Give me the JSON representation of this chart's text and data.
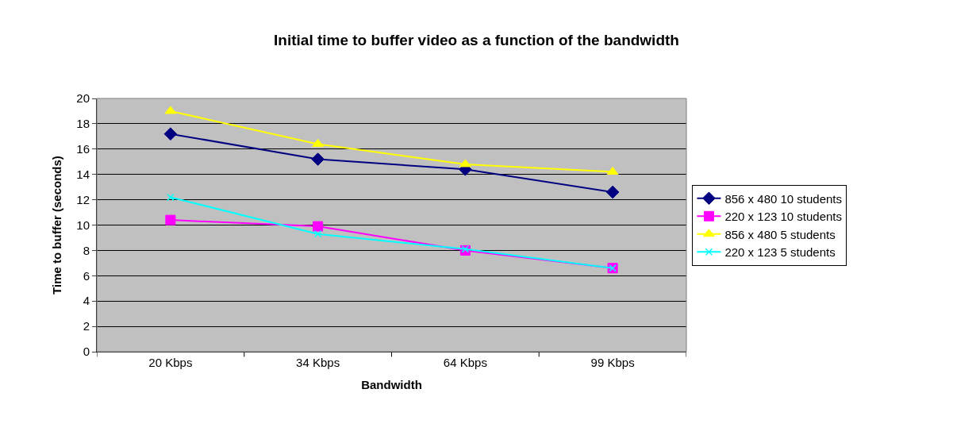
{
  "chart_data": {
    "type": "line",
    "title": "Initial time to buffer video as a function of the bandwidth",
    "xlabel": "Bandwidth",
    "ylabel": "Time to buffer (seconds)",
    "categories": [
      "20 Kbps",
      "34 Kbps",
      "64 Kbps",
      "99 Kbps"
    ],
    "series": [
      {
        "name": "856 x 480 10 students",
        "color": "#000080",
        "marker": "diamond",
        "values": [
          17.2,
          15.2,
          14.4,
          12.6
        ]
      },
      {
        "name": "220 x 123 10 students",
        "color": "#ff00ff",
        "marker": "square",
        "values": [
          10.4,
          9.9,
          8.0,
          6.6
        ]
      },
      {
        "name": "856 x 480 5 students",
        "color": "#ffff00",
        "marker": "triangle",
        "values": [
          19.0,
          16.4,
          14.8,
          14.2
        ]
      },
      {
        "name": "220 x 123 5 students",
        "color": "#00ffff",
        "marker": "cross",
        "values": [
          12.2,
          9.3,
          8.1,
          6.6
        ]
      }
    ],
    "ylim": [
      0,
      20
    ],
    "yticks": [
      0,
      2,
      4,
      6,
      8,
      10,
      12,
      14,
      16,
      18,
      20
    ],
    "grid": "y",
    "legend": "right",
    "line_style": "solid"
  }
}
